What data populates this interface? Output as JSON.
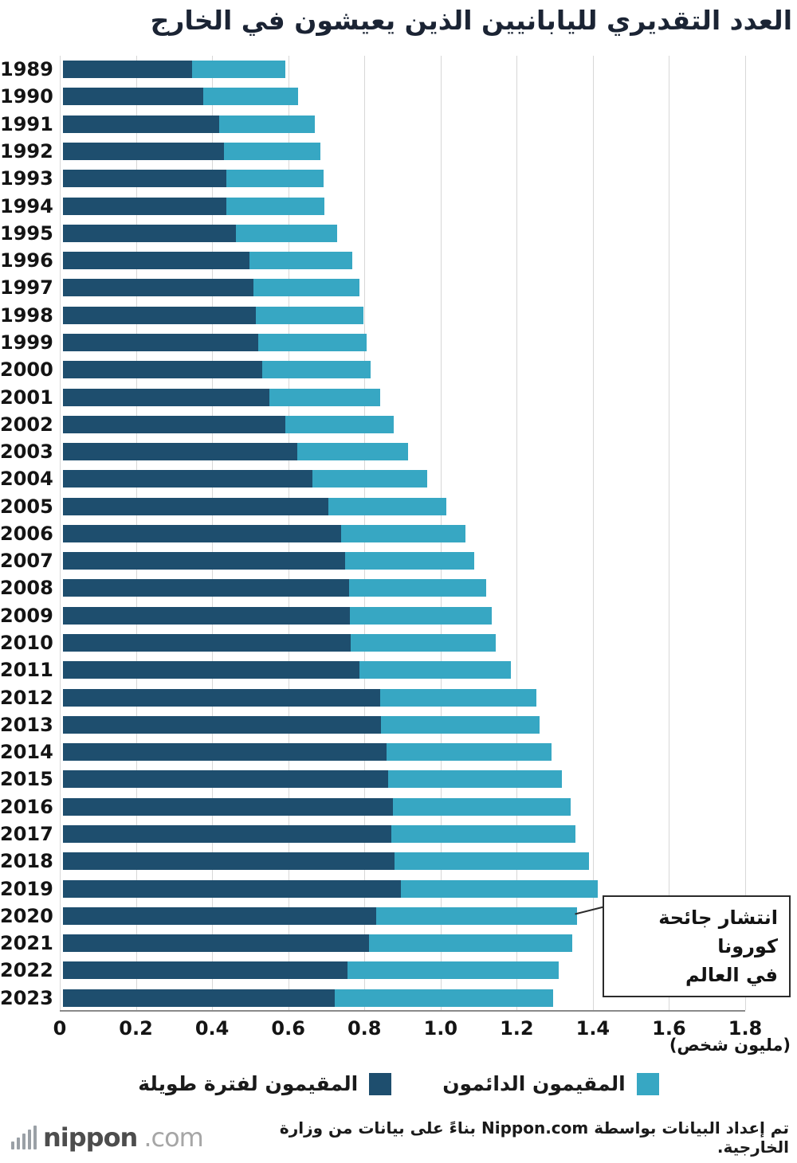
{
  "title": "العدد التقديري لليابانيين الذين يعيشون في الخارج",
  "chart_data": {
    "type": "bar",
    "orientation": "horizontal",
    "stacked": true,
    "grid": true,
    "categories": [
      "1989",
      "1990",
      "1991",
      "1992",
      "1993",
      "1994",
      "1995",
      "1996",
      "1997",
      "1998",
      "1999",
      "2000",
      "2001",
      "2002",
      "2003",
      "2004",
      "2005",
      "2006",
      "2007",
      "2008",
      "2009",
      "2010",
      "2011",
      "2012",
      "2013",
      "2014",
      "2015",
      "2016",
      "2017",
      "2018",
      "2019",
      "2020",
      "2021",
      "2022",
      "2023"
    ],
    "series": [
      {
        "name": "المقيمون لفترة طويلة",
        "color": "#1e4e6e",
        "values": [
          0.34,
          0.37,
          0.412,
          0.425,
          0.432,
          0.431,
          0.456,
          0.492,
          0.503,
          0.51,
          0.515,
          0.527,
          0.544,
          0.587,
          0.619,
          0.659,
          0.701,
          0.735,
          0.745,
          0.755,
          0.758,
          0.759,
          0.782,
          0.837,
          0.839,
          0.853,
          0.859,
          0.871,
          0.867,
          0.876,
          0.891,
          0.827,
          0.807,
          0.751,
          0.718
        ]
      },
      {
        "name": "المقيمون الدائمون",
        "color": "#37a7c3",
        "values": [
          0.246,
          0.25,
          0.252,
          0.255,
          0.256,
          0.26,
          0.268,
          0.271,
          0.279,
          0.282,
          0.286,
          0.285,
          0.293,
          0.285,
          0.292,
          0.302,
          0.31,
          0.328,
          0.34,
          0.361,
          0.373,
          0.384,
          0.4,
          0.412,
          0.419,
          0.436,
          0.457,
          0.468,
          0.485,
          0.513,
          0.52,
          0.53,
          0.537,
          0.557,
          0.575
        ]
      }
    ],
    "xlim": [
      0,
      1.8
    ],
    "xticks": [
      "0",
      "0.2",
      "0.4",
      "0.6",
      "0.8",
      "1.0",
      "1.2",
      "1.4",
      "1.6",
      "1.8"
    ],
    "x_unit_label": "(مليون شخص)",
    "legend_position": "bottom",
    "annotation": {
      "line1": "انتشار جائحة كورونا",
      "line2": "في العالم",
      "target_year": "2020"
    }
  },
  "legend": {
    "items": [
      {
        "label": "المقيمون لفترة طويلة",
        "color": "#1e4e6e"
      },
      {
        "label": "المقيمون الدائمون",
        "color": "#37a7c3"
      }
    ]
  },
  "footer": {
    "credit": "تم إعداد البيانات بواسطة Nippon.com بناءً على بيانات من وزارة الخارجية.",
    "logo": {
      "main": "nippon",
      "suffix": ".com"
    }
  }
}
